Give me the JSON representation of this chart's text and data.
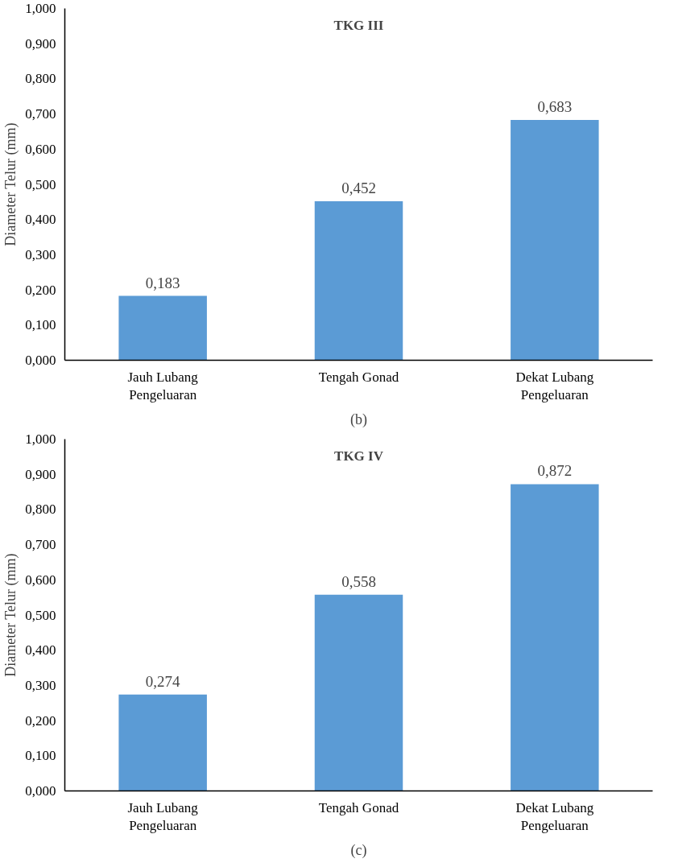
{
  "chart_data": [
    {
      "type": "bar",
      "title": "TKG III",
      "ylabel": "Diameter Telur (mm)",
      "categories": [
        "Jauh Lubang\nPengeluaran",
        "Tengah Gonad",
        "Dekat Lubang\nPengeluaran"
      ],
      "values": [
        0.183,
        0.452,
        0.683
      ],
      "value_labels": [
        "0,183",
        "0,452",
        "0,683"
      ],
      "color": "#5b9bd5",
      "ylim": [
        0,
        1
      ],
      "yticks": [
        {
          "value": 0,
          "label": "0,000"
        },
        {
          "value": 0.1,
          "label": "0,100"
        },
        {
          "value": 0.2,
          "label": "0,200"
        },
        {
          "value": 0.3,
          "label": "0,300"
        },
        {
          "value": 0.4,
          "label": "0,400"
        },
        {
          "value": 0.5,
          "label": "0,500"
        },
        {
          "value": 0.6,
          "label": "0,600"
        },
        {
          "value": 0.7,
          "label": "0,700"
        },
        {
          "value": 0.8,
          "label": "0,800"
        },
        {
          "value": 0.9,
          "label": "0,900"
        },
        {
          "value": 1,
          "label": "1,000"
        }
      ],
      "grid": false,
      "annotations": [
        "(b)"
      ]
    },
    {
      "type": "bar",
      "title": "TKG IV",
      "ylabel": "Diameter Telur (mm)",
      "categories": [
        "Jauh Lubang\nPengeluaran",
        "Tengah Gonad",
        "Dekat Lubang\nPengeluaran"
      ],
      "values": [
        0.274,
        0.558,
        0.872
      ],
      "value_labels": [
        "0,274",
        "0,558",
        "0,872"
      ],
      "color": "#5b9bd5",
      "ylim": [
        0,
        1
      ],
      "yticks": [
        {
          "value": 0,
          "label": "0,000"
        },
        {
          "value": 0.1,
          "label": "0,100"
        },
        {
          "value": 0.2,
          "label": "0,200"
        },
        {
          "value": 0.3,
          "label": "0,300"
        },
        {
          "value": 0.4,
          "label": "0,400"
        },
        {
          "value": 0.5,
          "label": "0,500"
        },
        {
          "value": 0.6,
          "label": "0,600"
        },
        {
          "value": 0.7,
          "label": "0,700"
        },
        {
          "value": 0.8,
          "label": "0,800"
        },
        {
          "value": 0.9,
          "label": "0,900"
        },
        {
          "value": 1,
          "label": "1,000"
        }
      ],
      "grid": false,
      "annotations": [
        "(c)"
      ]
    }
  ]
}
